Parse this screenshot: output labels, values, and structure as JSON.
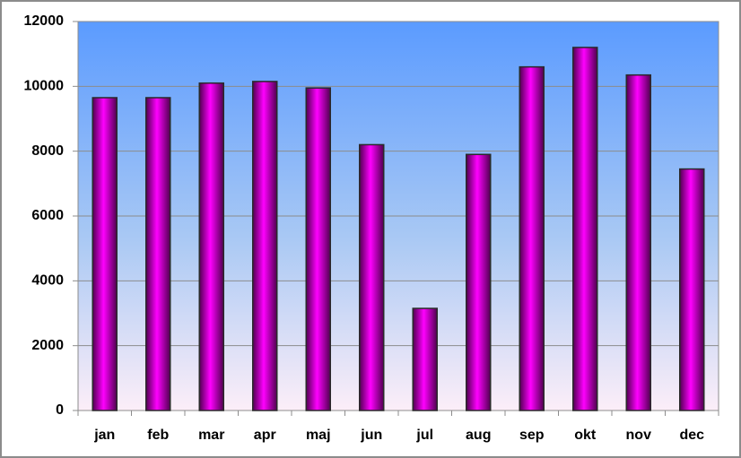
{
  "chart_data": {
    "type": "bar",
    "categories": [
      "jan",
      "feb",
      "mar",
      "apr",
      "maj",
      "jun",
      "jul",
      "aug",
      "sep",
      "okt",
      "nov",
      "dec"
    ],
    "values": [
      9650,
      9650,
      10100,
      10150,
      9950,
      8200,
      3150,
      7900,
      10600,
      11200,
      10350,
      7450
    ],
    "color": "#ff00ff",
    "ylim": [
      0,
      12000
    ],
    "yticks": [
      0,
      2000,
      4000,
      6000,
      8000,
      10000,
      12000
    ],
    "grid": true
  }
}
